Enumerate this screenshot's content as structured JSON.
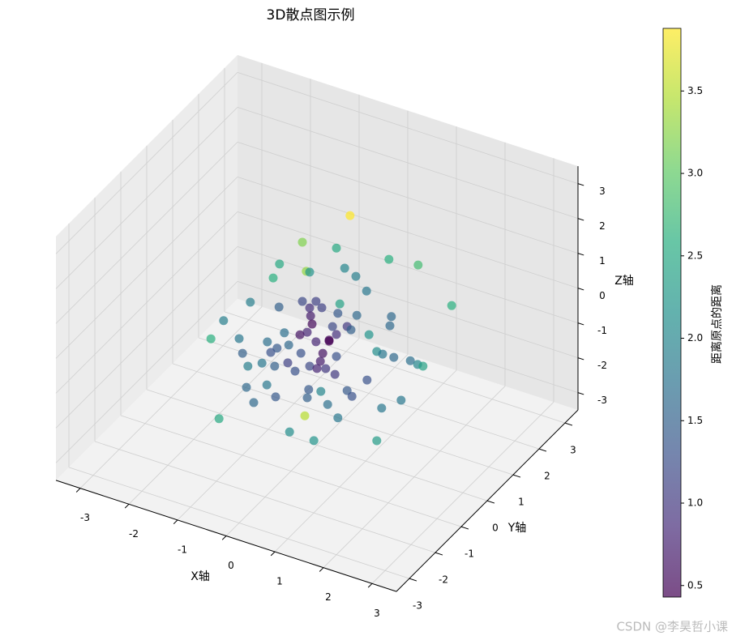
{
  "chart_data": {
    "type": "scatter3d",
    "title": "3D散点图示例",
    "x_label": "X轴",
    "y_label": "Y轴",
    "z_label": "Z轴",
    "colorbar_label": "距离原点的距离",
    "watermark": "CSDN @李昊哲小课",
    "colormap": "viridis",
    "alpha": 0.7,
    "grid": true,
    "xlim": [
      -3.5,
      3.5
    ],
    "ylim": [
      -3.5,
      3.5
    ],
    "zlim": [
      -3.5,
      3.5
    ],
    "xticks": [
      -3,
      -2,
      -1,
      0,
      1,
      2,
      3
    ],
    "yticks": [
      -3,
      -2,
      -1,
      0,
      1,
      2,
      3
    ],
    "zticks": [
      -3,
      -2,
      -1,
      0,
      1,
      2,
      3
    ],
    "clim": [
      0.43,
      3.88
    ],
    "cticks": [
      0.5,
      {
        "value": 1.0,
        "label": "1.0"
      },
      1.5,
      {
        "value": 2.0,
        "label": "2.0"
      },
      2.5,
      {
        "value": 3.0,
        "label": "3.0"
      },
      3.5
    ],
    "x": [
      0.68,
      -0.3,
      0.4,
      1.48,
      2.08,
      -0.77,
      -0.22,
      -0.15,
      0.57,
      0.8,
      -0.9,
      1.02,
      2.77,
      -1.37,
      -0.3,
      -0.02,
      0.47,
      -0.78,
      -0.15,
      0.1,
      -0.13,
      0.43,
      0.82,
      1.53,
      -1.92,
      -0.1,
      0.32,
      0.62,
      -0.2,
      -0.67,
      -1.6,
      -2.18,
      0.7,
      1.07,
      1.5,
      0.4,
      -0.35,
      0.25,
      -0.02,
      -1.02,
      -0.58,
      0.12,
      0.25,
      -0.82,
      -0.95,
      1.23,
      1.58,
      1.35,
      -1.53,
      -0.33,
      0.07,
      0.4,
      -0.6,
      -1.13,
      -1.42,
      -0.87,
      -0.45,
      -0.15,
      0.0,
      0.37,
      0.18,
      1.03,
      1.92,
      2.07,
      2.18,
      -1.45,
      -1.03,
      -0.17,
      0.08,
      0.62,
      0.72,
      -0.2,
      -0.85,
      -1.3,
      0.22,
      1.33,
      1.73,
      -0.25,
      0.43,
      -1.48,
      -0.03,
      0.47,
      1.23
    ],
    "y": [
      0,
      0,
      0,
      0,
      0,
      0,
      0,
      0,
      0,
      0,
      0,
      0,
      0,
      0,
      0,
      0,
      0,
      0,
      0,
      0,
      0,
      0,
      0,
      0,
      0,
      0,
      0,
      0,
      0,
      0,
      0,
      0,
      0,
      0,
      0,
      0,
      0,
      0,
      0,
      0,
      0,
      0,
      0,
      0,
      0,
      0,
      0,
      0,
      0,
      0,
      0,
      0,
      0,
      0,
      0,
      0,
      0,
      0,
      0,
      0,
      0,
      0,
      0,
      0,
      0,
      0,
      0,
      0,
      0,
      0,
      0,
      0,
      0,
      0,
      0,
      0,
      0,
      0,
      0,
      -1,
      -1,
      -1,
      0
    ],
    "z": [
      3.4,
      2.19,
      2.34,
      2.51,
      2.62,
      1.35,
      1.39,
      1.4,
      1.84,
      1.71,
      0.89,
      1.39,
      1.77,
      -0.02,
      0.49,
      0.62,
      0.77,
      0.11,
      0.37,
      0.49,
      0.15,
      0.48,
      0.6,
      0.89,
      -0.8,
      -0.07,
      0.05,
      0.19,
      -0.35,
      -0.58,
      -1.17,
      -1.44,
      0.13,
      0.16,
      0.61,
      -0.14,
      -0.49,
      -0.37,
      -0.54,
      -1.0,
      -0.89,
      -0.81,
      -0.4,
      -1.09,
      -1.27,
      -0.25,
      -0.26,
      -0.27,
      -1.56,
      -1.01,
      -1.06,
      -0.77,
      -1.41,
      -1.66,
      -1.88,
      -1.63,
      -1.58,
      -1.3,
      -1.3,
      -1.3,
      -1.22,
      -1.16,
      -0.2,
      -0.24,
      -0.24,
      -2.5,
      -2.24,
      -1.98,
      -1.92,
      -1.65,
      -1.77,
      -2.23,
      -2.5,
      -2.87,
      -2.23,
      -1.83,
      -1.42,
      -2.77,
      -2.52,
      -2.67,
      -2.39,
      -2.41,
      -2.81
    ],
    "c": [
      3.9,
      3.2,
      2.5,
      2.6,
      2.8,
      2.5,
      3.3,
      2.2,
      2.0,
      1.9,
      2.6,
      1.8,
      2.6,
      1.9,
      1.2,
      1.1,
      2.4,
      1.5,
      0.9,
      1.1,
      0.7,
      1.4,
      1.6,
      1.6,
      1.9,
      0.5,
      1.2,
      1.0,
      0.8,
      1.7,
      1.8,
      2.6,
      1.5,
      2.2,
      1.6,
      0.9,
      0.6,
      0.5,
      0.8,
      1.7,
      1.6,
      0.6,
      0.3,
      1.4,
      1.3,
      2.1,
      1.6,
      1.8,
      1.5,
      1.3,
      0.7,
      1.3,
      1.1,
      1.8,
      1.9,
      1.5,
      1.3,
      1.2,
      0.8,
      1.0,
      1.0,
      1.3,
      1.7,
      2.0,
      2.4,
      1.6,
      1.8,
      1.4,
      2.0,
      1.4,
      1.3,
      1.5,
      1.4,
      1.6,
      1.7,
      1.8,
      1.8,
      3.5,
      1.8,
      2.5,
      2.1,
      2.2,
      2.3
    ]
  }
}
